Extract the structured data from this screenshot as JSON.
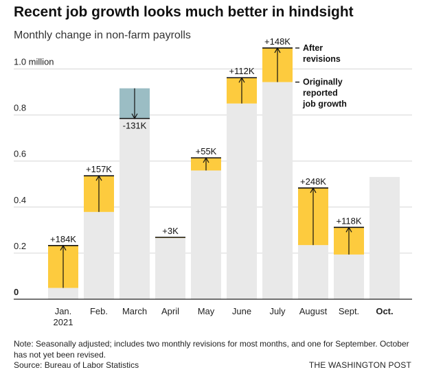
{
  "title": "Recent job growth looks much better in hindsight",
  "subtitle": "Monthly change in non-farm payrolls",
  "note": "Note: Seasonally adjusted; includes two monthly revisions for most months, and one for September. October has not yet been revised.",
  "source": "Source: Bureau of Labor Statistics",
  "credit": "THE WASHINGTON POST",
  "chart_data": {
    "type": "bar",
    "ylabel": "Monthly change in non-farm payrolls (millions)",
    "ylim": [
      0,
      1.1
    ],
    "y_ticks": [
      {
        "value": 0,
        "label": "0"
      },
      {
        "value": 0.2,
        "label": "0.2"
      },
      {
        "value": 0.4,
        "label": "0.4"
      },
      {
        "value": 0.6,
        "label": "0.6"
      },
      {
        "value": 0.8,
        "label": "0.8"
      },
      {
        "value": 1.0,
        "label": "1.0 million"
      }
    ],
    "categories": [
      "Jan.\n2021",
      "Feb.",
      "March",
      "April",
      "May",
      "June",
      "July",
      "August",
      "Sept.",
      "Oct."
    ],
    "series": [
      {
        "name": "Originally reported job growth",
        "values": [
          0.049,
          0.379,
          0.916,
          0.266,
          0.559,
          0.85,
          0.943,
          0.235,
          0.194,
          0.531
        ]
      },
      {
        "name": "After revisions",
        "values": [
          0.233,
          0.536,
          0.785,
          0.269,
          0.614,
          0.962,
          1.091,
          0.483,
          0.312,
          null
        ]
      }
    ],
    "revision_labels": [
      "+184K",
      "+157K",
      "-131K",
      "+3K",
      "+55K",
      "+112K",
      "+148K",
      "+248K",
      "+118K",
      ""
    ],
    "legend": {
      "after": "After\nrevisions",
      "original": "Originally\nreported\njob growth"
    },
    "colors": {
      "base": "#e9e9e9",
      "increase": "#fdcb3e",
      "decrease": "#9bbdc4",
      "line": "#111111",
      "grid": "#d6d6d6"
    }
  }
}
